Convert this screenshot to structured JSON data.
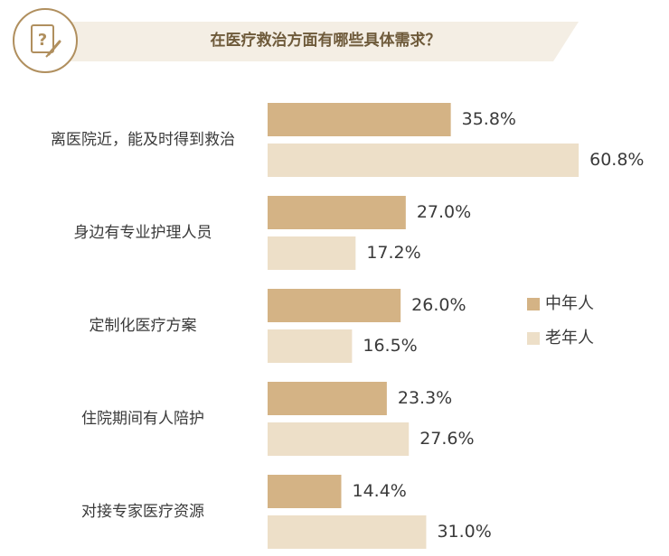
{
  "colors": {
    "middle_aged": "#d4b385",
    "elderly": "#eddfc8",
    "banner": "#f4eee4",
    "icon_ring": "#b08f5e"
  },
  "header": {
    "title": "在医疗救治方面有哪些具体需求？",
    "icon": "question-pencil-icon"
  },
  "chart_data": {
    "type": "bar",
    "orientation": "horizontal",
    "title": "在医疗救治方面有哪些具体需求？",
    "categories": [
      "离医院近，能及时得到救治",
      "身边有专业护理人员",
      "定制化医疗方案",
      "住院期间有人陪护",
      "对接专家医疗资源"
    ],
    "series": [
      {
        "name": "中年人",
        "values": [
          35.8,
          27.0,
          26.0,
          23.3,
          14.4
        ],
        "labels": [
          "35.8%",
          "27.0%",
          "26.0%",
          "23.3%",
          "14.4%"
        ]
      },
      {
        "name": "老年人",
        "values": [
          60.8,
          17.2,
          16.5,
          27.6,
          31.0
        ],
        "labels": [
          "60.8%",
          "17.2%",
          "16.5%",
          "27.6%",
          "31.0%"
        ]
      }
    ],
    "unit": "%",
    "legend": "right"
  }
}
